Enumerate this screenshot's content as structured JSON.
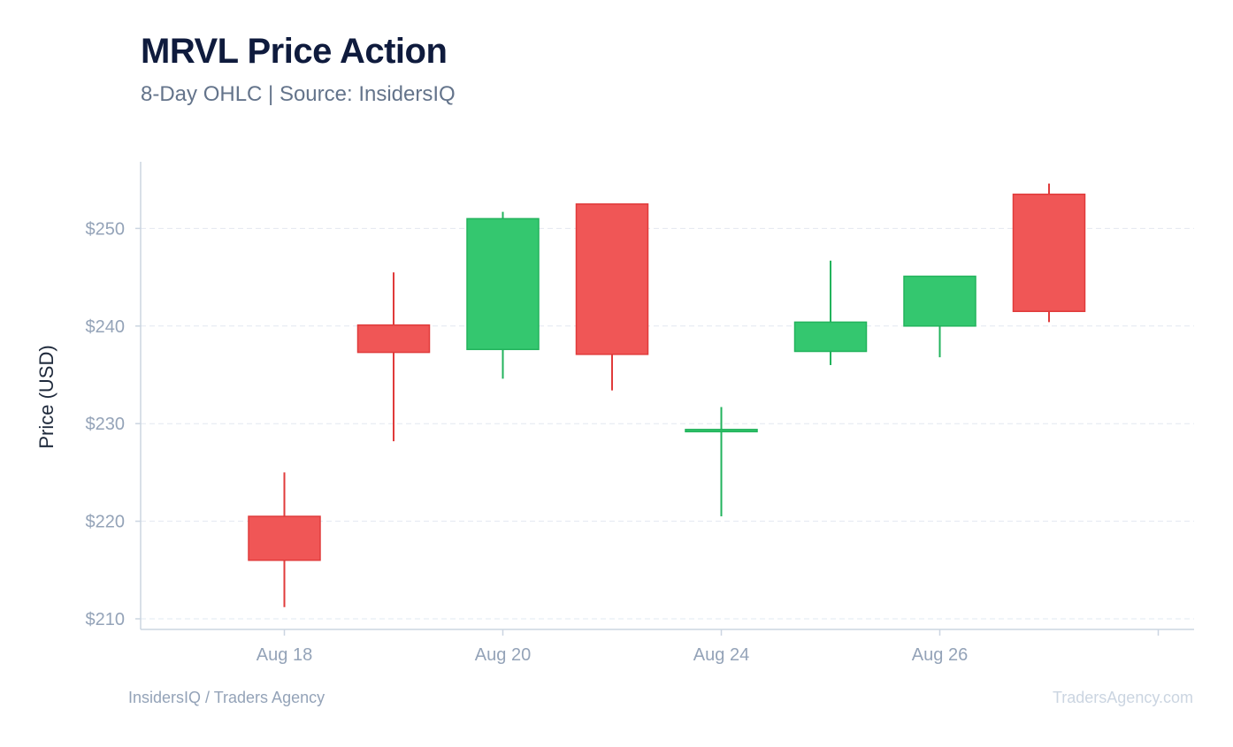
{
  "header": {
    "title": "MRVL Price Action",
    "subtitle": "8-Day OHLC | Source: InsidersIQ"
  },
  "footer": {
    "left": "InsidersIQ / Traders Agency",
    "right": "TradersAgency.com"
  },
  "colors": {
    "up": "#34c76f",
    "up_stroke": "#22b35c",
    "down": "#f05656",
    "down_stroke": "#e03b3b",
    "grid": "#e2e8f0",
    "axis": "#cbd5e1"
  },
  "chart_data": {
    "type": "candlestick",
    "ylabel": "Price (USD)",
    "ylim": [
      209,
      257
    ],
    "y_ticks": [
      210,
      220,
      230,
      240,
      250
    ],
    "y_tick_labels": [
      "$210",
      "$220",
      "$230",
      "$240",
      "$250"
    ],
    "x_tick_labels": [
      "Aug 18",
      "Aug 20",
      "Aug 24",
      "Aug 26",
      ""
    ],
    "grid": true,
    "candles": [
      {
        "open": 220.5,
        "high": 225.0,
        "low": 211.2,
        "close": 216.0
      },
      {
        "open": 240.1,
        "high": 245.5,
        "low": 228.2,
        "close": 237.3
      },
      {
        "open": 237.6,
        "high": 251.7,
        "low": 234.6,
        "close": 251.0
      },
      {
        "open": 252.5,
        "high": 252.5,
        "low": 233.4,
        "close": 237.1
      },
      {
        "open": 229.2,
        "high": 231.7,
        "low": 220.5,
        "close": 229.4
      },
      {
        "open": 237.4,
        "high": 246.7,
        "low": 236.0,
        "close": 240.4
      },
      {
        "open": 240.0,
        "high": 245.1,
        "low": 236.8,
        "close": 245.1
      },
      {
        "open": 253.5,
        "high": 254.6,
        "low": 240.4,
        "close": 241.5
      }
    ]
  }
}
